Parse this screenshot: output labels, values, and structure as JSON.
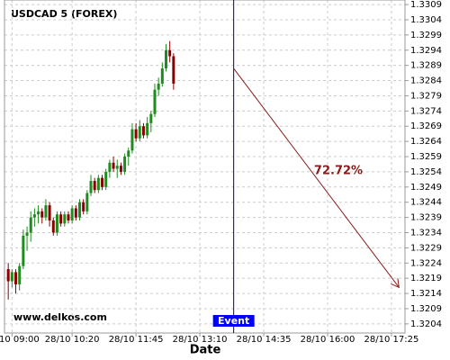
{
  "chart_data": {
    "type": "candlestick",
    "title": "USDCAD 5 (FOREX)",
    "xlabel": "Date",
    "watermark": "www.delkos.com",
    "x": [
      -5,
      0,
      5,
      10,
      15,
      20,
      25,
      30,
      35,
      40,
      45,
      50,
      55,
      60,
      65,
      70,
      75,
      80,
      85,
      90,
      95,
      100,
      105,
      110,
      115,
      120,
      125,
      130,
      135,
      140,
      145,
      150,
      155,
      160,
      165,
      170,
      175,
      180,
      185,
      190,
      195,
      200,
      205,
      210,
      215
    ],
    "open": [
      1.3222,
      1.3218,
      1.3221,
      1.3217,
      1.3223,
      1.3233,
      1.3234,
      1.3239,
      1.324,
      1.3241,
      1.3239,
      1.3243,
      1.3238,
      1.3234,
      1.324,
      1.3237,
      1.324,
      1.3238,
      1.3242,
      1.3239,
      1.3244,
      1.3241,
      1.3247,
      1.3251,
      1.3248,
      1.3252,
      1.3249,
      1.3254,
      1.3257,
      1.3255,
      1.3256,
      1.3254,
      1.3259,
      1.3261,
      1.3268,
      1.3265,
      1.3269,
      1.3266,
      1.327,
      1.3273,
      1.3281,
      1.3283,
      1.3288,
      1.3294,
      1.3292
    ],
    "high": [
      1.3224,
      1.3222,
      1.3222,
      1.3224,
      1.3235,
      1.3236,
      1.3241,
      1.3242,
      1.3243,
      1.3242,
      1.3245,
      1.3244,
      1.3239,
      1.3241,
      1.3241,
      1.3241,
      1.3241,
      1.3243,
      1.3243,
      1.3245,
      1.3245,
      1.3248,
      1.3253,
      1.3252,
      1.3253,
      1.3253,
      1.3255,
      1.3258,
      1.3259,
      1.3258,
      1.3257,
      1.326,
      1.3262,
      1.327,
      1.327,
      1.3271,
      1.327,
      1.3272,
      1.3274,
      1.3283,
      1.3285,
      1.329,
      1.3296,
      1.3297,
      1.3293
    ],
    "low": [
      1.3212,
      1.3216,
      1.3214,
      1.3215,
      1.3222,
      1.3228,
      1.3231,
      1.3236,
      1.3237,
      1.3237,
      1.3238,
      1.3236,
      1.3233,
      1.3233,
      1.3236,
      1.3236,
      1.3237,
      1.3237,
      1.3238,
      1.3238,
      1.324,
      1.324,
      1.3246,
      1.3247,
      1.3247,
      1.3248,
      1.3248,
      1.3252,
      1.3254,
      1.3252,
      1.3253,
      1.3253,
      1.3256,
      1.326,
      1.3264,
      1.3264,
      1.3265,
      1.3265,
      1.3267,
      1.3272,
      1.3279,
      1.3282,
      1.3287,
      1.329,
      1.3281
    ],
    "close": [
      1.3218,
      1.3221,
      1.3217,
      1.3223,
      1.3233,
      1.3234,
      1.3239,
      1.324,
      1.3241,
      1.3239,
      1.3243,
      1.3238,
      1.3234,
      1.324,
      1.3237,
      1.324,
      1.3238,
      1.3242,
      1.3239,
      1.3244,
      1.3241,
      1.3247,
      1.3251,
      1.3248,
      1.3252,
      1.3249,
      1.3254,
      1.3257,
      1.3255,
      1.3256,
      1.3254,
      1.3259,
      1.3261,
      1.3268,
      1.3265,
      1.3269,
      1.3266,
      1.327,
      1.3273,
      1.3281,
      1.3283,
      1.3288,
      1.3294,
      1.3292,
      1.3283
    ],
    "up_color": "#1f8c1f",
    "down_color": "#8b0000",
    "xlim": [
      -10,
      523
    ],
    "xticks": [
      {
        "value": 0,
        "label": "10 09:00"
      },
      {
        "value": 80,
        "label": "28/10 10:20"
      },
      {
        "value": 165,
        "label": "28/10 11:45"
      },
      {
        "value": 250,
        "label": "28/10 13:10"
      },
      {
        "value": 335,
        "label": "28/10 14:35"
      },
      {
        "value": 420,
        "label": "28/10 16:00"
      },
      {
        "value": 505,
        "label": "28/10 17:25"
      }
    ],
    "ylim": [
      1.3201,
      1.33105
    ],
    "yticks": [
      1.3309,
      1.3304,
      1.3299,
      1.3294,
      1.3289,
      1.3284,
      1.3279,
      1.3274,
      1.3269,
      1.3264,
      1.3259,
      1.3254,
      1.3249,
      1.3244,
      1.3239,
      1.3234,
      1.3229,
      1.3224,
      1.3219,
      1.3214,
      1.3209,
      1.3204
    ],
    "grid": true,
    "event": {
      "x": 295,
      "label": "Event",
      "color": "#00008b"
    },
    "prediction": {
      "x": [
        295,
        515
      ],
      "y": [
        1.3288,
        1.3216
      ],
      "label": "72.72%",
      "color": "#8b1a1a"
    }
  }
}
